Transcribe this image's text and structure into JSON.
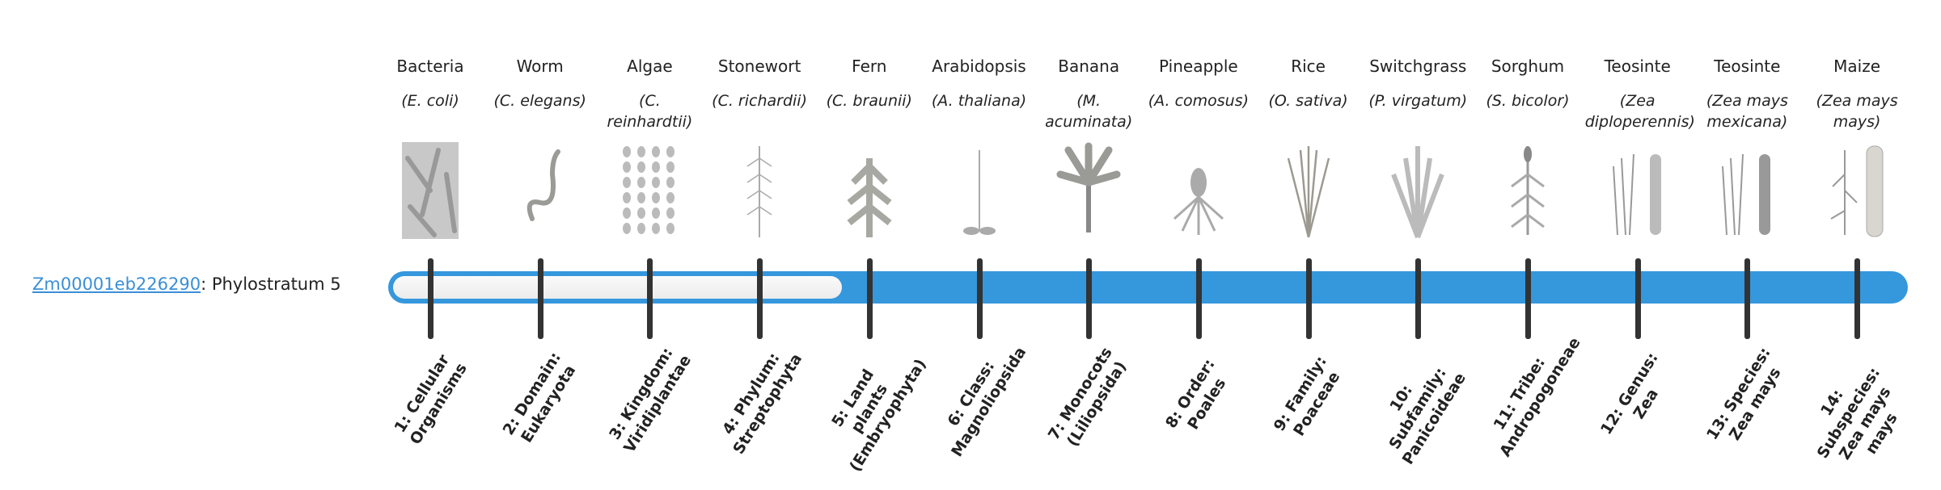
{
  "gene": {
    "id": "Zm00001eb226290",
    "suffix": ": Phylostratum 5"
  },
  "active_stratum": 5,
  "accent_color": "#3597dc",
  "strata": [
    {
      "common": "Bacteria",
      "sci": "(E. coli)",
      "label": "1: Cellular Organisms",
      "icon": "bacteria-illustration"
    },
    {
      "common": "Worm",
      "sci": "(C. elegans)",
      "label": "2: Domain: Eukaryota",
      "icon": "worm-illustration"
    },
    {
      "common": "Algae",
      "sci": "(C. reinhardtii)",
      "label": "3: Kingdom: Viridiplantae",
      "icon": "algae-illustration"
    },
    {
      "common": "Stonewort",
      "sci": "(C. richardii)",
      "label": "4: Phylum: Streptophyta",
      "icon": "stonewort-illustration"
    },
    {
      "common": "Fern",
      "sci": "(C. braunii)",
      "label": "5: Land plants (Embryophyta)",
      "icon": "fern-illustration"
    },
    {
      "common": "Arabidopsis",
      "sci": "(A. thaliana)",
      "label": "6: Class: Magnoliopsida",
      "icon": "arabidopsis-illustration"
    },
    {
      "common": "Banana",
      "sci": "(M. acuminata)",
      "label": "7: Monocots (Liliopsida)",
      "icon": "banana-illustration"
    },
    {
      "common": "Pineapple",
      "sci": "(A. comosus)",
      "label": "8: Order: Poales",
      "icon": "pineapple-illustration"
    },
    {
      "common": "Rice",
      "sci": "(O. sativa)",
      "label": "9: Family: Poaceae",
      "icon": "rice-illustration"
    },
    {
      "common": "Switchgrass",
      "sci": "(P. virgatum)",
      "label": "10: Subfamily: Panicoideae",
      "icon": "switchgrass-illustration"
    },
    {
      "common": "Sorghum",
      "sci": "(S. bicolor)",
      "label": "11: Tribe: Andropogoneae",
      "icon": "sorghum-illustration"
    },
    {
      "common": "Teosinte",
      "sci": "(Zea diploperennis)",
      "label": "12: Genus: Zea",
      "icon": "teosinte-illustration"
    },
    {
      "common": "Teosinte",
      "sci": "(Zea mays mexicana)",
      "label": "13: Species: Zea mays",
      "icon": "teosinte-mexicana-illustration"
    },
    {
      "common": "Maize",
      "sci": "(Zea mays mays)",
      "label": "14: Subspecies: Zea mays mays",
      "icon": "maize-illustration"
    }
  ]
}
